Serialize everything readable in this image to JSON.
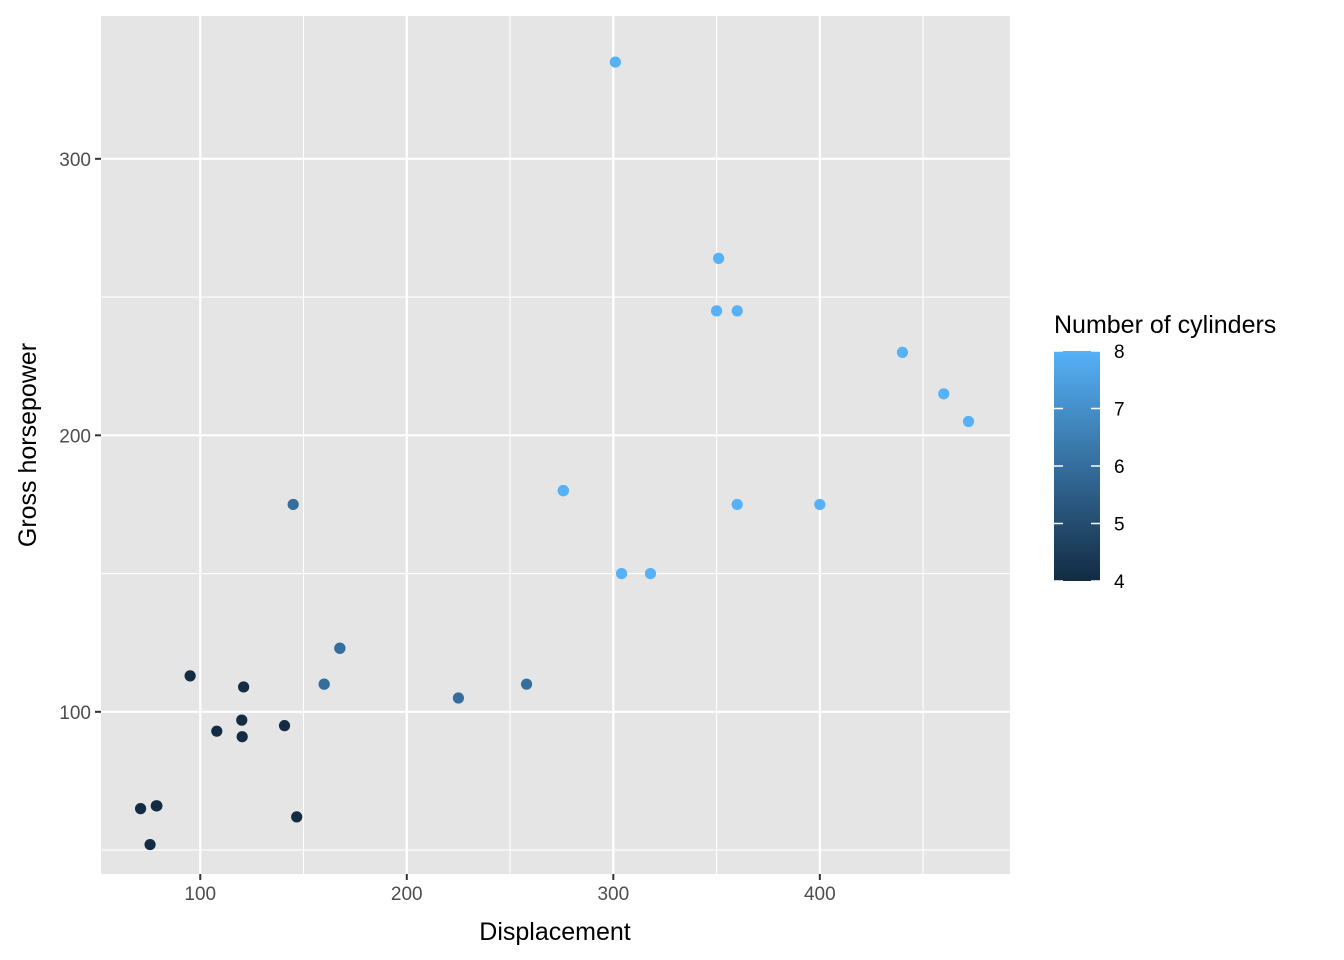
{
  "chart_data": {
    "type": "scatter",
    "title": "",
    "xlabel": "Displacement",
    "ylabel": "Gross horsepower",
    "xlim": [
      51.94,
      492.08
    ],
    "ylim": [
      41.35,
      351.65
    ],
    "x_ticks": [
      100,
      200,
      300,
      400
    ],
    "y_ticks": [
      100,
      200,
      300
    ],
    "x_minor_ticks": [
      150,
      250,
      350,
      450
    ],
    "y_minor_ticks": [
      50,
      150,
      250
    ],
    "grid": true,
    "panel_background": "#e5e5e5",
    "legend": {
      "title": "Number of cylinders",
      "type": "colorbar",
      "placement": "right",
      "range": [
        4,
        8
      ],
      "breaks": [
        4,
        5,
        6,
        7,
        8
      ],
      "break_labels": [
        "4",
        "5",
        "6",
        "7",
        "8"
      ],
      "low_color": "#132b43",
      "high_color": "#56b1f7"
    },
    "points": [
      {
        "x": 160,
        "y": 110,
        "cyl": 6
      },
      {
        "x": 160,
        "y": 110,
        "cyl": 6
      },
      {
        "x": 108,
        "y": 93,
        "cyl": 4
      },
      {
        "x": 258,
        "y": 110,
        "cyl": 6
      },
      {
        "x": 360,
        "y": 175,
        "cyl": 8
      },
      {
        "x": 225,
        "y": 105,
        "cyl": 6
      },
      {
        "x": 360,
        "y": 245,
        "cyl": 8
      },
      {
        "x": 146.7,
        "y": 62,
        "cyl": 4
      },
      {
        "x": 140.8,
        "y": 95,
        "cyl": 4
      },
      {
        "x": 167.6,
        "y": 123,
        "cyl": 6
      },
      {
        "x": 167.6,
        "y": 123,
        "cyl": 6
      },
      {
        "x": 275.8,
        "y": 180,
        "cyl": 8
      },
      {
        "x": 275.8,
        "y": 180,
        "cyl": 8
      },
      {
        "x": 275.8,
        "y": 180,
        "cyl": 8
      },
      {
        "x": 472,
        "y": 205,
        "cyl": 8
      },
      {
        "x": 460,
        "y": 215,
        "cyl": 8
      },
      {
        "x": 440,
        "y": 230,
        "cyl": 8
      },
      {
        "x": 78.7,
        "y": 66,
        "cyl": 4
      },
      {
        "x": 75.7,
        "y": 52,
        "cyl": 4
      },
      {
        "x": 71.1,
        "y": 65,
        "cyl": 4
      },
      {
        "x": 120.1,
        "y": 97,
        "cyl": 4
      },
      {
        "x": 318,
        "y": 150,
        "cyl": 8
      },
      {
        "x": 304,
        "y": 150,
        "cyl": 8
      },
      {
        "x": 350,
        "y": 245,
        "cyl": 8
      },
      {
        "x": 400,
        "y": 175,
        "cyl": 8
      },
      {
        "x": 79,
        "y": 66,
        "cyl": 4
      },
      {
        "x": 120.3,
        "y": 91,
        "cyl": 4
      },
      {
        "x": 95.1,
        "y": 113,
        "cyl": 4
      },
      {
        "x": 351,
        "y": 264,
        "cyl": 8
      },
      {
        "x": 145,
        "y": 175,
        "cyl": 6
      },
      {
        "x": 301,
        "y": 335,
        "cyl": 8
      },
      {
        "x": 121,
        "y": 109,
        "cyl": 4
      }
    ]
  }
}
